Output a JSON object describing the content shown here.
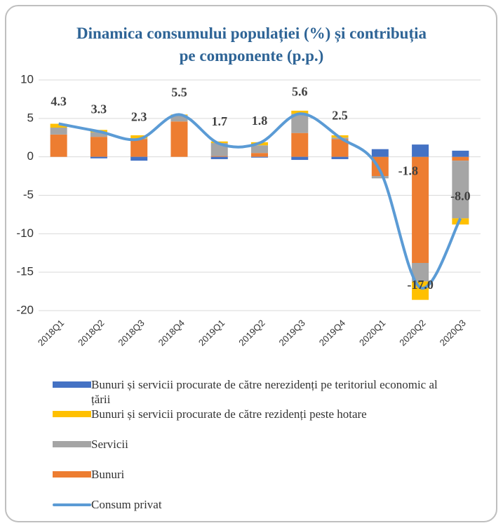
{
  "chart_data": {
    "type": "bar",
    "title": "Dinamica consumului populației (%) și contribuția pe componente (p.p.)",
    "categories": [
      "2018Q1",
      "2018Q2",
      "2018Q3",
      "2018Q4",
      "2019Q1",
      "2019Q2",
      "2019Q3",
      "2019Q4",
      "2020Q1",
      "2020Q2",
      "2020Q3"
    ],
    "series": [
      {
        "name": "Bunuri și servicii procurate de către nerezidenți pe teritoriul economic al țării",
        "color": "#4472c4",
        "type": "bar",
        "values": [
          0,
          -0.2,
          -0.5,
          0,
          -0.3,
          -0.1,
          -0.4,
          -0.3,
          1.0,
          1.6,
          0.8
        ]
      },
      {
        "name": "Bunuri și servicii procurate de către rezidenți peste hotare",
        "color": "#ffc000",
        "type": "bar",
        "values": [
          0.5,
          0.3,
          0.4,
          0.1,
          0.2,
          0.4,
          0.4,
          0.3,
          0,
          -2.4,
          -0.8
        ]
      },
      {
        "name": "Servicii",
        "color": "#a5a5a5",
        "type": "bar",
        "values": [
          0.9,
          0.6,
          0.1,
          0.8,
          1.7,
          1.0,
          2.5,
          0.2,
          -0.3,
          -2.4,
          -7.5
        ]
      },
      {
        "name": "Bunuri",
        "color": "#ed7d31",
        "type": "bar",
        "values": [
          2.9,
          2.6,
          2.3,
          4.6,
          0.1,
          0.5,
          3.1,
          2.3,
          -2.5,
          -13.8,
          -0.5
        ]
      },
      {
        "name": "Consum privat",
        "color": "#5b9bd5",
        "type": "line",
        "values": [
          4.3,
          3.3,
          2.3,
          5.5,
          1.7,
          1.8,
          5.6,
          2.5,
          -1.8,
          -17,
          -8
        ],
        "value_labels": [
          "4.3",
          "3.3",
          "2.3",
          "5.5",
          "1.7",
          "1.8",
          "5.6",
          "2.5",
          "-1.8",
          "-17.0",
          "-8.0"
        ]
      }
    ],
    "ylim": [
      -20,
      10
    ],
    "yticks": [
      10,
      5,
      0,
      -5,
      -10,
      -15,
      -20
    ],
    "grid": true,
    "stacked": true
  }
}
